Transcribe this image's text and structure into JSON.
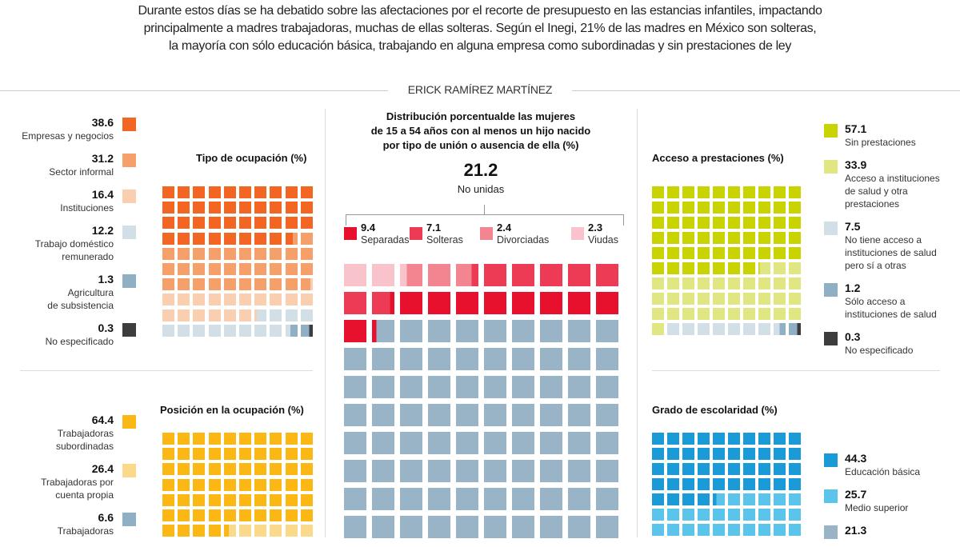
{
  "intro": [
    "Durante estos días se ha debatido sobre las afectaciones por el recorte de presupuesto en las estancias infantiles, impactando",
    "principalmente a madres trabajadoras, muchas de ellas solteras. Según el Inegi, 21% de las madres en México son solteras,",
    "la mayoría con sólo educación básica, trabajando en alguna empresa como subordinadas y sin prestaciones de ley"
  ],
  "author": "ERICK RAMÍREZ MARTÍNEZ",
  "chart_data": [
    {
      "type": "waffle",
      "title": "Tipo de ocupación (%)",
      "series": [
        {
          "name": "Empresas y negocios",
          "value": 38.6,
          "color": "#f26522"
        },
        {
          "name": "Sector informal",
          "value": 31.2,
          "color": "#f5a06a"
        },
        {
          "name": "Instituciones",
          "value": 16.4,
          "color": "#f9cfb0"
        },
        {
          "name": "Trabajo doméstico\nremunerado",
          "value": 12.2,
          "color": "#d2dfe7"
        },
        {
          "name": "Agricultura\nde subsistencia",
          "value": 1.3,
          "color": "#8fb0c4"
        },
        {
          "name": "No especificado",
          "value": 0.3,
          "color": "#3d3d3d"
        }
      ],
      "remainder_color": "#d2dfe7"
    },
    {
      "type": "waffle",
      "title": "Distribución porcentualde las mujeres\nde 15 a 54 años con al menos un hijo nacido\npor tipo de unión o ausencia de ella (%)",
      "total": {
        "value": "21.2",
        "label": "No unidas"
      },
      "series": [
        {
          "name": "Separadas",
          "value": 9.4,
          "color": "#e8112d"
        },
        {
          "name": "Solteras",
          "value": 7.1,
          "color": "#ee3b55"
        },
        {
          "name": "Divorciadas",
          "value": 2.4,
          "color": "#f2858f"
        },
        {
          "name": "Viudas",
          "value": 2.3,
          "color": "#f8c3ca"
        }
      ],
      "fill_order": "reverse",
      "remainder_color": "#98b4c6"
    },
    {
      "type": "waffle",
      "title": "Acceso a prestaciones  (%)",
      "series": [
        {
          "name": "Sin prestaciones",
          "value": 57.1,
          "color": "#c9d300"
        },
        {
          "name": "Acceso a instituciones\nde salud y otra\n prestaciones",
          "value": 33.9,
          "color": "#e0e682"
        },
        {
          "name": "No tiene acceso a\ninstituciones de salud\npero sí a otras",
          "value": 7.5,
          "color": "#d2dfe7"
        },
        {
          "name": "Sólo acceso a\ninstituciones de salud",
          "value": 1.2,
          "color": "#8fb0c4"
        },
        {
          "name": "No especificado",
          "value": 0.3,
          "color": "#3d3d3d"
        }
      ],
      "remainder_color": "#d2dfe7"
    },
    {
      "type": "waffle",
      "title": "Posición en la ocupación  (%)",
      "series": [
        {
          "name": "Trabajadoras\nsubordinadas",
          "value": 64.4,
          "color": "#fbb714"
        },
        {
          "name": "Trabajadoras por\ncuenta propia",
          "value": 26.4,
          "color": "#fbd98a"
        },
        {
          "name": "Trabajadoras",
          "value": 6.6,
          "color": "#8fb0c4"
        }
      ],
      "remainder_color": "#8fb0c4"
    },
    {
      "type": "waffle",
      "title": "Grado de escolaridad (%)",
      "series": [
        {
          "name": "Educación básica",
          "value": 44.3,
          "color": "#1a9bd7"
        },
        {
          "name": "Medio superior",
          "value": 25.7,
          "color": "#5bc4ea"
        },
        {
          "name": "",
          "value": 21.3,
          "color": "#98b4c6"
        }
      ],
      "remainder_color": "#98b4c6"
    }
  ]
}
